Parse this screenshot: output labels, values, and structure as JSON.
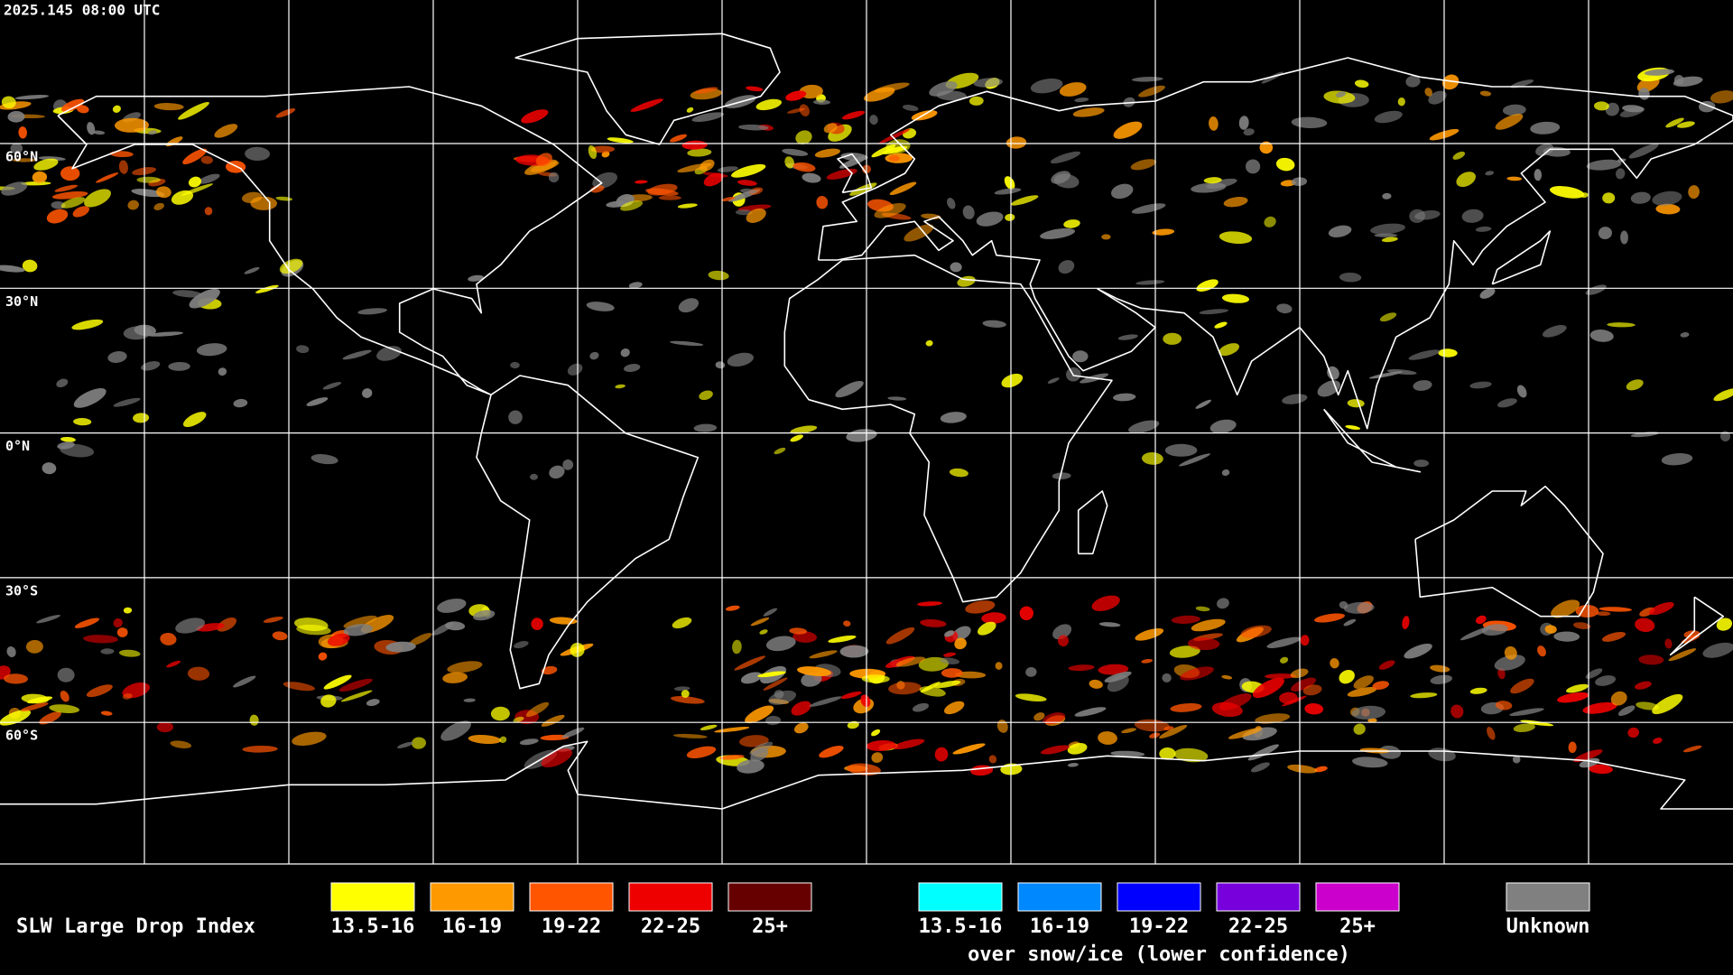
{
  "header": {
    "timestamp": "2025.145 08:00 UTC"
  },
  "map": {
    "lat_labels": [
      "60°N",
      "30°N",
      "0°N",
      "30°S",
      "60°S"
    ]
  },
  "legend": {
    "title": "SLW Large Drop Index",
    "groups": [
      {
        "items": [
          {
            "label": "13.5-16",
            "color": "#ffff00"
          },
          {
            "label": "16-19",
            "color": "#ff9900"
          },
          {
            "label": "19-22",
            "color": "#ff5500"
          },
          {
            "label": "22-25",
            "color": "#ee0000"
          },
          {
            "label": "25+",
            "color": "#660000"
          }
        ]
      },
      {
        "items": [
          {
            "label": "13.5-16",
            "color": "#00ffff"
          },
          {
            "label": "16-19",
            "color": "#0088ff"
          },
          {
            "label": "19-22",
            "color": "#0000ff"
          },
          {
            "label": "22-25",
            "color": "#7700dd"
          },
          {
            "label": "25+",
            "color": "#cc00cc"
          }
        ],
        "caption": "over snow/ice (lower confidence)"
      },
      {
        "items": [
          {
            "label": "Unknown",
            "color": "#808080"
          }
        ]
      }
    ]
  }
}
